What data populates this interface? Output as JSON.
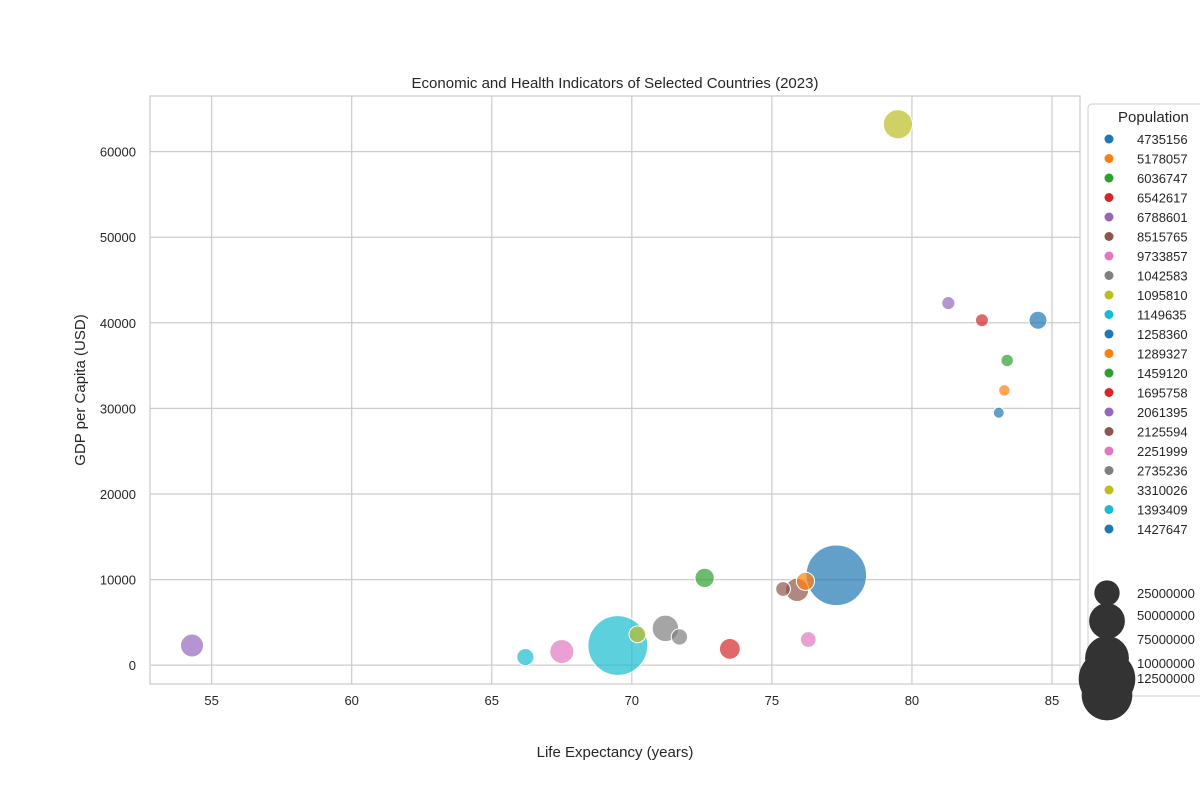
{
  "chart_data": {
    "type": "scatter",
    "title": "Economic and Health Indicators of Selected Countries (2023)",
    "xlabel": "Life Expectancy (years)",
    "ylabel": "GDP per Capita (USD)",
    "xlim": [
      52.8,
      86.0
    ],
    "ylim": [
      -2200,
      66500
    ],
    "xticks": [
      55,
      60,
      65,
      70,
      75,
      80,
      85
    ],
    "yticks": [
      0,
      10000,
      20000,
      30000,
      40000,
      50000,
      60000
    ],
    "grid": true,
    "legend": {
      "title": "Population",
      "position": "right, outside plot (cropped)",
      "hue_entries": [
        {
          "label": "4735156",
          "color": "#1f77b4"
        },
        {
          "label": "5178057",
          "color": "#ff7f0e"
        },
        {
          "label": "6036747",
          "color": "#2ca02c"
        },
        {
          "label": "6542617",
          "color": "#d62728"
        },
        {
          "label": "6788601",
          "color": "#9467bd"
        },
        {
          "label": "8515765",
          "color": "#8c564b"
        },
        {
          "label": "9733857",
          "color": "#e377c2"
        },
        {
          "label": "1042583",
          "color": "#7f7f7f"
        },
        {
          "label": "1095810",
          "color": "#bcbd22"
        },
        {
          "label": "1149635",
          "color": "#17becf"
        },
        {
          "label": "1258360",
          "color": "#1f77b4"
        },
        {
          "label": "1289327",
          "color": "#ff7f0e"
        },
        {
          "label": "1459120",
          "color": "#2ca02c"
        },
        {
          "label": "1695758",
          "color": "#d62728"
        },
        {
          "label": "2061395",
          "color": "#9467bd"
        },
        {
          "label": "2125594",
          "color": "#8c564b"
        },
        {
          "label": "2251999",
          "color": "#e377c2"
        },
        {
          "label": "2735236",
          "color": "#7f7f7f"
        },
        {
          "label": "3310026",
          "color": "#bcbd22"
        },
        {
          "label": "1393409",
          "color": "#17becf"
        },
        {
          "label": "1427647",
          "color": "#1f77b4"
        }
      ],
      "size_entries": [
        {
          "label": "25000000",
          "population": 250000000
        },
        {
          "label": "50000000",
          "population": 500000000
        },
        {
          "label": "75000000",
          "population": 750000000
        },
        {
          "label": "10000000",
          "population": 1000000000
        },
        {
          "label": "12500000",
          "population": 1250000000
        }
      ]
    },
    "points": [
      {
        "x": 54.3,
        "y": 2300,
        "population": 206139589,
        "color": "#9467bd"
      },
      {
        "x": 66.2,
        "y": 950,
        "population": 114963588,
        "color": "#17becf"
      },
      {
        "x": 67.5,
        "y": 1600,
        "population": 225199937,
        "color": "#e377c2"
      },
      {
        "x": 69.5,
        "y": 2300,
        "population": 1393409038,
        "color": "#17becf"
      },
      {
        "x": 70.2,
        "y": 3600,
        "population": 109581078,
        "color": "#bcbd22"
      },
      {
        "x": 71.2,
        "y": 4300,
        "population": 273523615,
        "color": "#7f7f7f"
      },
      {
        "x": 71.7,
        "y": 3300,
        "population": 104258327,
        "color": "#7f7f7f"
      },
      {
        "x": 72.6,
        "y": 10200,
        "population": 145912025,
        "color": "#2ca02c"
      },
      {
        "x": 73.5,
        "y": 1900,
        "population": 169575880,
        "color": "#d62728"
      },
      {
        "x": 75.4,
        "y": 8900,
        "population": 85157650,
        "color": "#8c564b"
      },
      {
        "x": 75.9,
        "y": 8800,
        "population": 212559417,
        "color": "#8c564b"
      },
      {
        "x": 76.2,
        "y": 9800,
        "population": 128932753,
        "color": "#ff7f0e"
      },
      {
        "x": 76.3,
        "y": 3000,
        "population": 97338579,
        "color": "#e377c2"
      },
      {
        "x": 77.3,
        "y": 10500,
        "population": 1427647786,
        "color": "#1f77b4"
      },
      {
        "x": 79.5,
        "y": 63200,
        "population": 331002651,
        "color": "#bcbd22"
      },
      {
        "x": 81.3,
        "y": 42300,
        "population": 67886011,
        "color": "#9467bd"
      },
      {
        "x": 82.5,
        "y": 40300,
        "population": 65426179,
        "color": "#d62728"
      },
      {
        "x": 83.1,
        "y": 29500,
        "population": 47351567,
        "color": "#1f77b4"
      },
      {
        "x": 83.3,
        "y": 32100,
        "population": 51780579,
        "color": "#ff7f0e"
      },
      {
        "x": 83.4,
        "y": 35600,
        "population": 60367477,
        "color": "#2ca02c"
      },
      {
        "x": 84.5,
        "y": 40300,
        "population": 125836021,
        "color": "#1f77b4"
      }
    ],
    "colors": {
      "axis_frame": "#cccccc",
      "grid": "#cccccc",
      "text": "#262626",
      "size_legend_marker": "#333333"
    }
  }
}
